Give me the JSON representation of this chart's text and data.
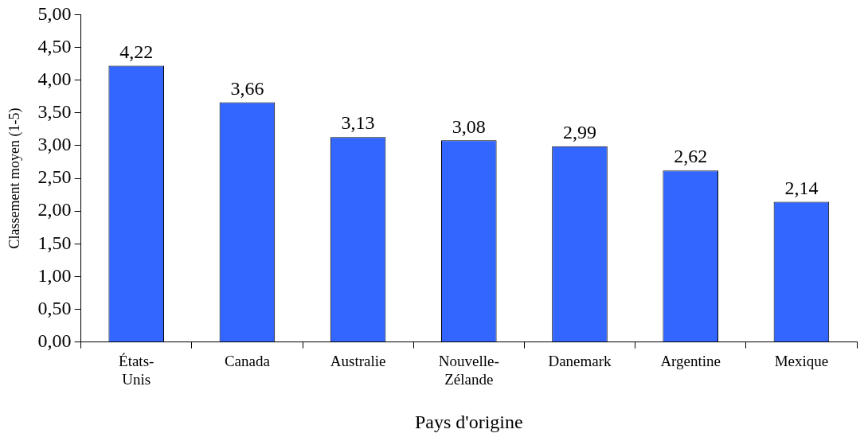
{
  "chart_data": {
    "type": "bar",
    "xlabel": "Pays d'origine",
    "ylabel": "Classement moyen (1-5)",
    "categories": [
      "États-Unis",
      "Canada",
      "Australie",
      "Nouvelle-Zélande",
      "Danemark",
      "Argentine",
      "Mexique"
    ],
    "values": [
      4.22,
      3.66,
      3.13,
      3.08,
      2.99,
      2.62,
      2.14
    ],
    "value_labels": [
      "4,22",
      "3,66",
      "3,13",
      "3,08",
      "2,99",
      "2,62",
      "2,14"
    ],
    "color": "#3366ff",
    "ylim": [
      0,
      5
    ],
    "yticks": [
      {
        "value": 0,
        "label": "0,00"
      },
      {
        "value": 0.5,
        "label": "0,50"
      },
      {
        "value": 1,
        "label": "1,00"
      },
      {
        "value": 1.5,
        "label": "1,50"
      },
      {
        "value": 2,
        "label": "2,00"
      },
      {
        "value": 2.5,
        "label": "2,50"
      },
      {
        "value": 3,
        "label": "3,00"
      },
      {
        "value": 3.5,
        "label": "3,50"
      },
      {
        "value": 4,
        "label": "4,00"
      },
      {
        "value": 4.5,
        "label": "4,50"
      },
      {
        "value": 5,
        "label": "5,00"
      }
    ],
    "grid": false,
    "legend": false
  }
}
